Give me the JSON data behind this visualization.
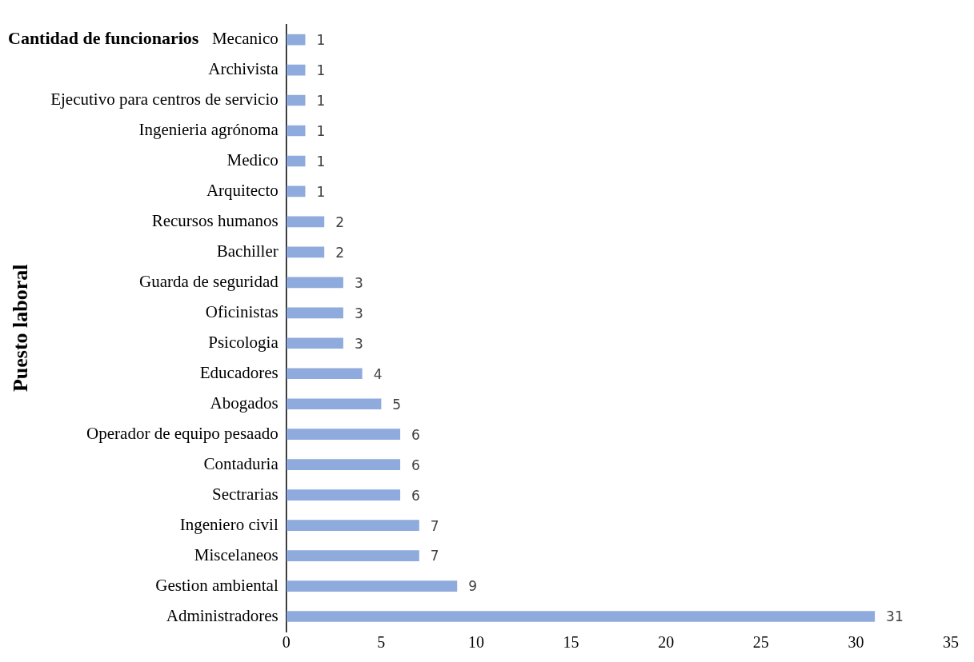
{
  "chart_data": {
    "type": "bar",
    "orientation": "horizontal",
    "title": "Cantidad de funcionarios",
    "ylabel": "Puesto laboral",
    "categories": [
      "Mecanico",
      "Archivista",
      "Ejecutivo para centros de servicio",
      "Ingenieria agrónoma",
      "Medico",
      "Arquitecto",
      "Recursos humanos",
      "Bachiller",
      "Guarda de seguridad",
      "Oficinistas",
      "Psicologia",
      "Educadores",
      "Abogados",
      "Operador de equipo pesaado",
      "Contaduria",
      "Sectrarias",
      "Ingeniero civil",
      "Miscelaneos",
      "Gestion ambiental",
      "Administradores"
    ],
    "values": [
      1,
      1,
      1,
      1,
      1,
      1,
      2,
      2,
      3,
      3,
      3,
      4,
      5,
      6,
      6,
      6,
      7,
      7,
      9,
      31
    ],
    "color": "#8faadc",
    "xlim": [
      0,
      35
    ],
    "xticks": [
      0,
      5,
      10,
      15,
      20,
      25,
      30,
      35
    ],
    "grid": false,
    "legend": false,
    "data_labels": true
  }
}
